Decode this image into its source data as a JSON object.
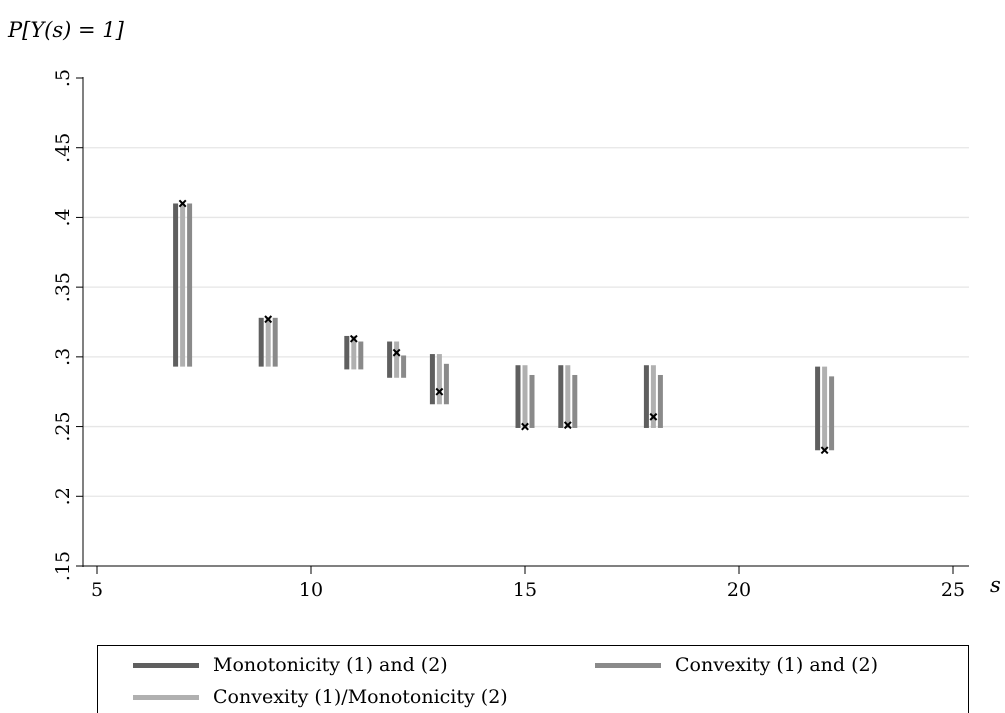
{
  "chart_data": {
    "type": "range_bar",
    "xlabel": "s",
    "ylabel": "P[Y(s) = 1]",
    "xlim": [
      5,
      25
    ],
    "ylim": [
      0.15,
      0.5
    ],
    "x_ticks": [
      5,
      10,
      15,
      20,
      25
    ],
    "x_tick_labels": [
      "5",
      "10",
      "15",
      "20",
      "25"
    ],
    "y_ticks": [
      0.15,
      0.2,
      0.25,
      0.3,
      0.35,
      0.4,
      0.45,
      0.5
    ],
    "y_tick_labels": [
      ".15",
      ".2",
      ".25",
      ".3",
      ".35",
      ".4",
      ".45",
      ".5"
    ],
    "grid": true,
    "legend_position": "bottom",
    "series": [
      {
        "name": "Monotonicity (1) and (2)",
        "color": "#5f5f5f",
        "x": [
          7,
          9,
          11,
          12,
          13,
          15,
          16,
          18,
          22
        ],
        "low": [
          0.293,
          0.293,
          0.291,
          0.285,
          0.266,
          0.249,
          0.249,
          0.249,
          0.233
        ],
        "high": [
          0.41,
          0.328,
          0.315,
          0.311,
          0.302,
          0.294,
          0.294,
          0.294,
          0.293
        ]
      },
      {
        "name": "Convexity (1)/Monotonicity (2)",
        "color": "#b0b0b0",
        "x": [
          7,
          9,
          11,
          12,
          13,
          15,
          16,
          18,
          22
        ],
        "low": [
          0.293,
          0.293,
          0.291,
          0.285,
          0.266,
          0.249,
          0.249,
          0.249,
          0.233
        ],
        "high": [
          0.41,
          0.328,
          0.315,
          0.311,
          0.302,
          0.294,
          0.294,
          0.294,
          0.293
        ]
      },
      {
        "name": "Convexity (1) and (2)",
        "color": "#8a8a8a",
        "x": [
          7,
          9,
          11,
          12,
          13,
          15,
          16,
          18,
          22
        ],
        "low": [
          0.293,
          0.293,
          0.291,
          0.285,
          0.266,
          0.249,
          0.249,
          0.249,
          0.233
        ],
        "high": [
          0.41,
          0.328,
          0.311,
          0.301,
          0.295,
          0.287,
          0.287,
          0.287,
          0.286
        ]
      }
    ],
    "points": {
      "marker": "x",
      "x": [
        7,
        9,
        11,
        12,
        13,
        15,
        16,
        18,
        22
      ],
      "y": [
        0.41,
        0.327,
        0.313,
        0.303,
        0.275,
        0.25,
        0.251,
        0.257,
        0.233
      ]
    }
  },
  "legend": {
    "items": [
      {
        "label": "Monotonicity (1) and (2)",
        "color": "#5f5f5f"
      },
      {
        "label": "Convexity (1) and (2)",
        "color": "#8a8a8a"
      },
      {
        "label": "Convexity (1)/Monotonicity (2)",
        "color": "#b0b0b0"
      }
    ]
  }
}
